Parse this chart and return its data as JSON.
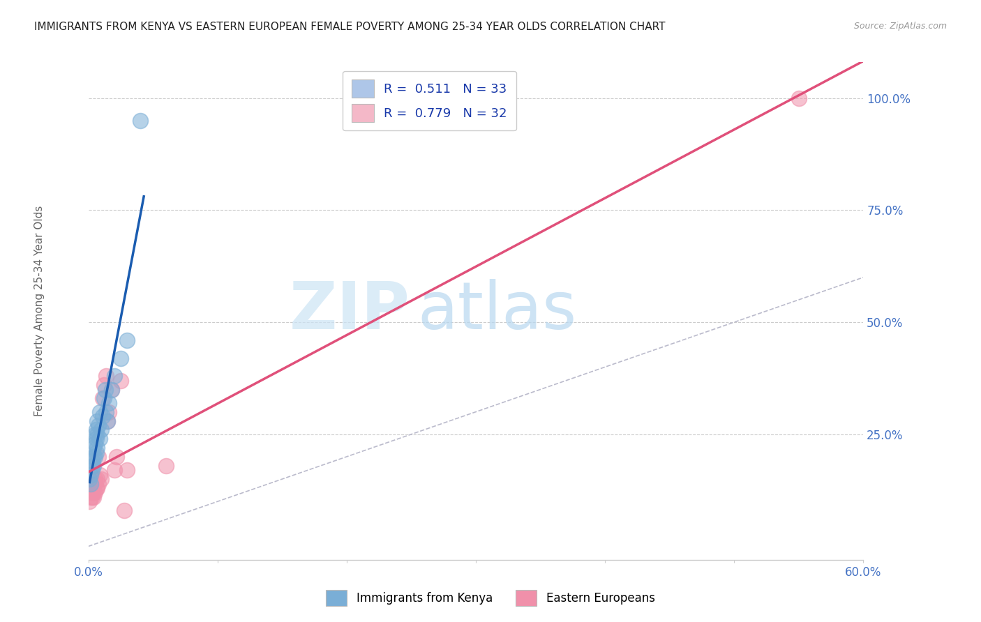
{
  "title": "IMMIGRANTS FROM KENYA VS EASTERN EUROPEAN FEMALE POVERTY AMONG 25-34 YEAR OLDS CORRELATION CHART",
  "source": "Source: ZipAtlas.com",
  "ylabel": "Female Poverty Among 25-34 Year Olds",
  "ytick_labels": [
    "100.0%",
    "75.0%",
    "50.0%",
    "25.0%"
  ],
  "ytick_values": [
    1.0,
    0.75,
    0.5,
    0.25
  ],
  "xlim": [
    0.0,
    0.6
  ],
  "ylim": [
    -0.03,
    1.08
  ],
  "legend_entries": [
    {
      "label": "R =  0.511   N = 33",
      "color": "#aec6e8"
    },
    {
      "label": "R =  0.779   N = 32",
      "color": "#f4b8c8"
    }
  ],
  "kenya_color": "#7aaed6",
  "eastern_color": "#f090aa",
  "watermark_zip": "ZIP",
  "watermark_atlas": "atlas",
  "kenya_scatter_x": [
    0.001,
    0.002,
    0.002,
    0.003,
    0.003,
    0.003,
    0.004,
    0.004,
    0.004,
    0.005,
    0.005,
    0.005,
    0.006,
    0.006,
    0.006,
    0.007,
    0.007,
    0.007,
    0.008,
    0.009,
    0.009,
    0.01,
    0.011,
    0.012,
    0.013,
    0.014,
    0.015,
    0.016,
    0.018,
    0.02,
    0.025,
    0.03,
    0.04
  ],
  "kenya_scatter_y": [
    0.15,
    0.14,
    0.16,
    0.17,
    0.18,
    0.19,
    0.18,
    0.2,
    0.22,
    0.2,
    0.23,
    0.25,
    0.21,
    0.24,
    0.26,
    0.22,
    0.25,
    0.28,
    0.27,
    0.24,
    0.3,
    0.26,
    0.29,
    0.33,
    0.35,
    0.3,
    0.28,
    0.32,
    0.35,
    0.38,
    0.42,
    0.46,
    0.95
  ],
  "eastern_scatter_x": [
    0.001,
    0.002,
    0.002,
    0.003,
    0.003,
    0.003,
    0.004,
    0.004,
    0.004,
    0.005,
    0.005,
    0.005,
    0.006,
    0.007,
    0.007,
    0.008,
    0.008,
    0.009,
    0.01,
    0.011,
    0.012,
    0.014,
    0.015,
    0.016,
    0.018,
    0.02,
    0.022,
    0.025,
    0.028,
    0.03,
    0.06,
    0.55
  ],
  "eastern_scatter_y": [
    0.1,
    0.11,
    0.12,
    0.11,
    0.12,
    0.13,
    0.11,
    0.12,
    0.14,
    0.12,
    0.14,
    0.15,
    0.13,
    0.13,
    0.15,
    0.14,
    0.2,
    0.16,
    0.15,
    0.33,
    0.36,
    0.38,
    0.28,
    0.3,
    0.35,
    0.17,
    0.2,
    0.37,
    0.08,
    0.17,
    0.18,
    1.0
  ],
  "grid_color": "#cccccc",
  "background_color": "#ffffff",
  "title_fontsize": 11,
  "axis_tick_color": "#4472c4"
}
